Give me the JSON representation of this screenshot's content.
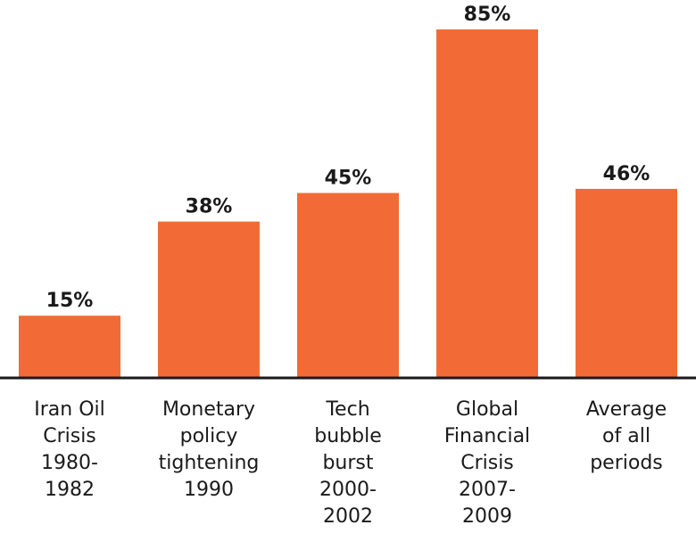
{
  "chart_data": {
    "type": "bar",
    "categories": [
      [
        "Iran Oil",
        "Crisis",
        "1980-",
        "1982"
      ],
      [
        "Monetary",
        "policy",
        "tightening",
        "1990"
      ],
      [
        "Tech",
        "bubble",
        "burst",
        "2000-",
        "2002"
      ],
      [
        "Global",
        "Financial",
        "Crisis",
        "2007-",
        "2009"
      ],
      [
        "Average",
        "of all",
        "periods"
      ]
    ],
    "values": [
      15,
      38,
      45,
      85,
      46
    ],
    "data_labels": [
      "15%",
      "38%",
      "45%",
      "85%",
      "46%"
    ],
    "ylim": [
      0,
      85
    ],
    "grid": false,
    "colors": {
      "bar": "#F26B36",
      "baseline": "#1a1a1a",
      "text": "#1a1a1a"
    }
  }
}
